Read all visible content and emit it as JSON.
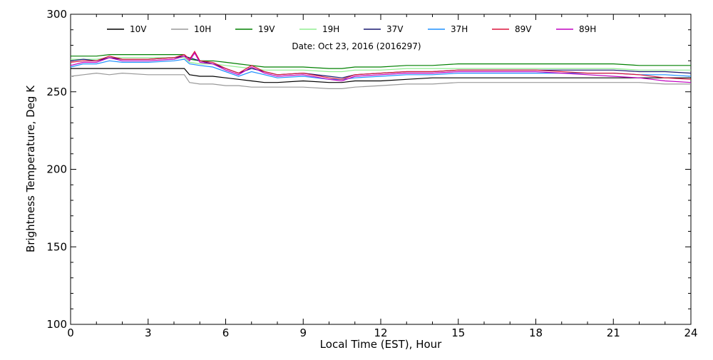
{
  "chart_data": {
    "type": "line",
    "annotation": "Date: Oct 23, 2016 (2016297)",
    "xlabel": "Local Time (EST), Hour",
    "ylabel": "Brightness Temperature, Deg K",
    "xlim": [
      0,
      24
    ],
    "ylim": [
      100,
      300
    ],
    "xticks": [
      0,
      3,
      6,
      9,
      12,
      15,
      18,
      21,
      24
    ],
    "yticks": [
      100,
      150,
      200,
      250,
      300
    ],
    "grid": false,
    "legend_position": "top",
    "series": [
      {
        "name": "10V",
        "color": "#000000",
        "x": [
          0,
          0.5,
          1,
          1.5,
          2,
          3,
          4,
          4.4,
          4.6,
          5,
          5.5,
          6,
          6.5,
          7,
          7.5,
          8,
          9,
          10,
          10.5,
          11,
          12,
          13,
          14,
          15,
          16,
          17,
          18,
          19,
          20,
          21,
          22,
          23,
          24
        ],
        "y": [
          265,
          265,
          265,
          265,
          265,
          265,
          265,
          265,
          261,
          260,
          260,
          259,
          258,
          257,
          256,
          256,
          257,
          256,
          256,
          257,
          257,
          258,
          259,
          259,
          259,
          259,
          259,
          259,
          259,
          259,
          259,
          259,
          259
        ]
      },
      {
        "name": "10H",
        "color": "#999999",
        "x": [
          0,
          0.5,
          1,
          1.5,
          2,
          3,
          4,
          4.4,
          4.6,
          5,
          5.5,
          6,
          6.5,
          7,
          7.5,
          8,
          9,
          10,
          10.5,
          11,
          12,
          13,
          14,
          15,
          16,
          17,
          18,
          19,
          20,
          21,
          22,
          23,
          24
        ],
        "y": [
          260,
          261,
          262,
          261,
          262,
          261,
          261,
          261,
          256,
          255,
          255,
          254,
          254,
          253,
          253,
          253,
          253,
          252,
          252,
          253,
          254,
          255,
          255,
          256,
          256,
          256,
          256,
          256,
          256,
          256,
          256,
          255,
          255
        ]
      },
      {
        "name": "19V",
        "color": "#008000",
        "x": [
          0,
          0.5,
          1,
          1.5,
          2,
          3,
          4,
          4.4,
          4.6,
          5,
          5.5,
          6,
          6.5,
          7,
          7.5,
          8,
          9,
          10,
          10.5,
          11,
          12,
          13,
          14,
          15,
          16,
          17,
          18,
          19,
          20,
          21,
          22,
          23,
          24
        ],
        "y": [
          273,
          273,
          273,
          274,
          274,
          274,
          274,
          274,
          271,
          270,
          270,
          269,
          268,
          267,
          266,
          266,
          266,
          265,
          265,
          266,
          266,
          267,
          267,
          268,
          268,
          268,
          268,
          268,
          268,
          268,
          267,
          267,
          267
        ]
      },
      {
        "name": "19H",
        "color": "#90ee90",
        "x": [
          0,
          0.5,
          1,
          1.5,
          2,
          3,
          4,
          4.4,
          4.6,
          5,
          5.5,
          6,
          6.5,
          7,
          7.5,
          8,
          9,
          10,
          10.5,
          11,
          12,
          13,
          14,
          15,
          16,
          17,
          18,
          19,
          20,
          21,
          22,
          23,
          24
        ],
        "y": [
          271,
          271,
          271,
          272,
          272,
          272,
          272,
          272,
          269,
          268,
          268,
          267,
          266,
          265,
          264,
          264,
          264,
          263,
          263,
          264,
          264,
          265,
          265,
          265,
          265,
          265,
          265,
          265,
          265,
          265,
          264,
          264,
          264
        ]
      },
      {
        "name": "37V",
        "color": "#191970",
        "x": [
          0,
          0.5,
          1,
          1.5,
          2,
          3,
          4,
          4.4,
          4.6,
          5,
          5.5,
          6,
          6.5,
          7,
          7.5,
          8,
          9,
          10,
          10.5,
          11,
          12,
          13,
          14,
          15,
          16,
          17,
          18,
          19,
          20,
          21,
          22,
          23,
          24
        ],
        "y": [
          270,
          271,
          270,
          272,
          271,
          271,
          272,
          273,
          272,
          270,
          268,
          265,
          262,
          265,
          263,
          261,
          262,
          260,
          259,
          261,
          262,
          263,
          263,
          264,
          264,
          264,
          264,
          264,
          264,
          264,
          263,
          263,
          262
        ]
      },
      {
        "name": "37H",
        "color": "#1e90ff",
        "x": [
          0,
          0.5,
          1,
          1.5,
          2,
          3,
          4,
          4.4,
          4.6,
          5,
          5.5,
          6,
          6.5,
          7,
          7.5,
          8,
          9,
          10,
          10.5,
          11,
          12,
          13,
          14,
          15,
          16,
          17,
          18,
          19,
          20,
          21,
          22,
          23,
          24
        ],
        "y": [
          266,
          268,
          268,
          270,
          269,
          269,
          270,
          271,
          268,
          267,
          266,
          263,
          260,
          263,
          261,
          259,
          260,
          258,
          258,
          259,
          260,
          261,
          261,
          262,
          262,
          262,
          262,
          262,
          262,
          262,
          261,
          261,
          260
        ]
      },
      {
        "name": "89V",
        "color": "#dc143c",
        "x": [
          0,
          0.5,
          1,
          1.5,
          2,
          3,
          4,
          4.4,
          4.6,
          4.8,
          5,
          5.5,
          6,
          6.5,
          7,
          7.5,
          8,
          9,
          10,
          10.5,
          11,
          12,
          13,
          14,
          15,
          16,
          17,
          18,
          19,
          20,
          21,
          22,
          23,
          24
        ],
        "y": [
          269,
          270,
          270,
          273,
          271,
          271,
          272,
          274,
          271,
          276,
          270,
          269,
          265,
          262,
          267,
          263,
          261,
          262,
          259,
          258,
          261,
          262,
          263,
          263,
          264,
          264,
          264,
          264,
          263,
          262,
          262,
          261,
          259,
          258
        ]
      },
      {
        "name": "89H",
        "color": "#c000c0",
        "x": [
          0,
          0.5,
          1,
          1.5,
          2,
          3,
          4,
          4.4,
          4.6,
          4.8,
          5,
          5.5,
          6,
          6.5,
          7,
          7.5,
          8,
          9,
          10,
          10.5,
          11,
          12,
          13,
          14,
          15,
          16,
          17,
          18,
          19,
          20,
          21,
          22,
          23,
          24
        ],
        "y": [
          267,
          269,
          269,
          272,
          270,
          270,
          271,
          273,
          270,
          275,
          269,
          268,
          264,
          261,
          266,
          262,
          260,
          261,
          258,
          257,
          260,
          261,
          262,
          262,
          263,
          263,
          263,
          263,
          262,
          261,
          260,
          259,
          257,
          256
        ]
      }
    ]
  }
}
